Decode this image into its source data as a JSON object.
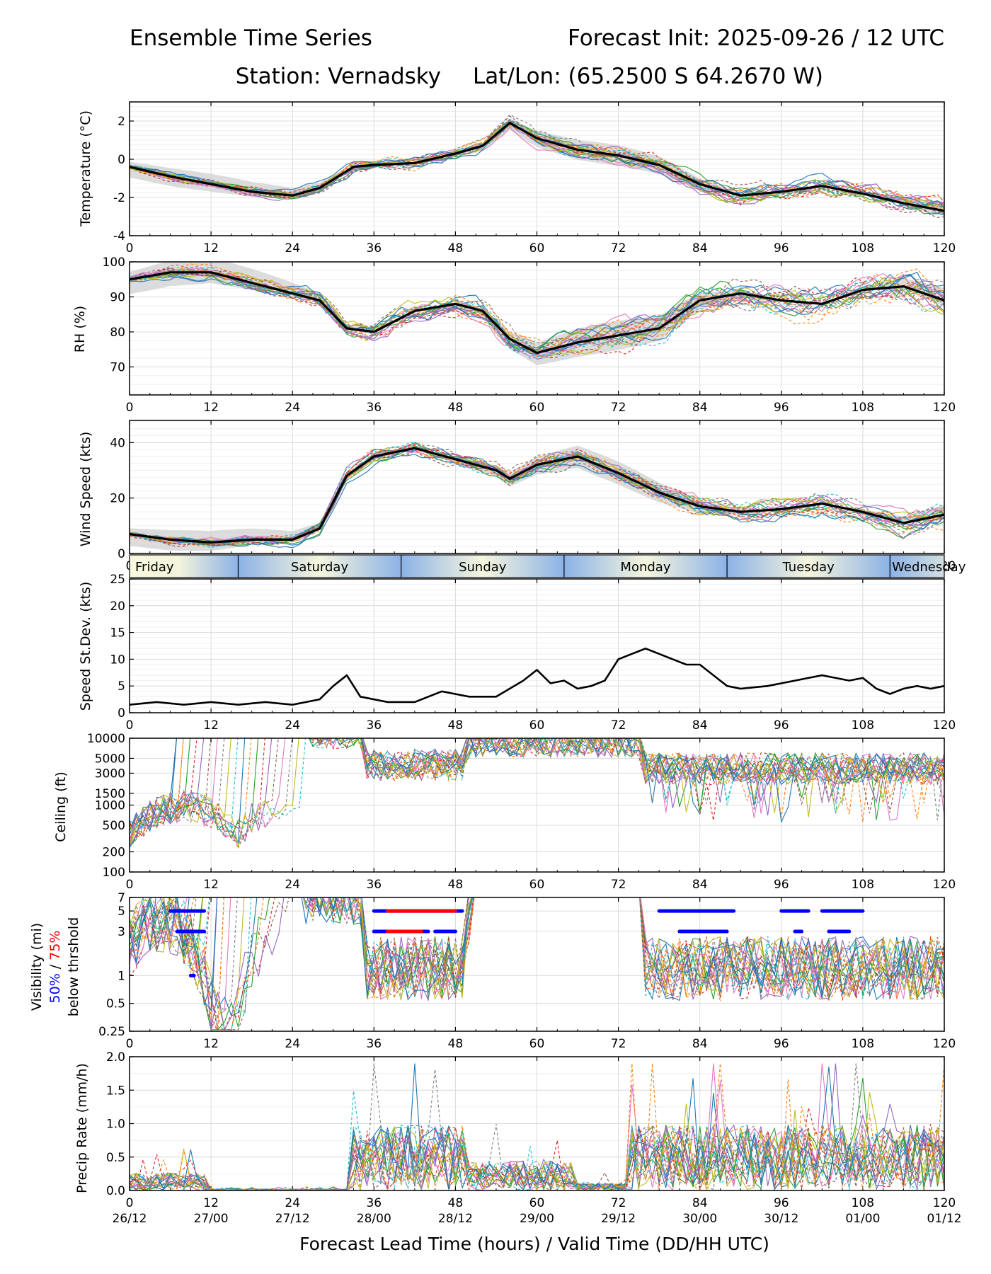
{
  "header": {
    "title_left": "Ensemble Time Series",
    "title_right": "Forecast Init: 2025-09-26 / 12 UTC",
    "station": "Station: Vernadsky",
    "latlon": "Lat/Lon: (65.2500 S 64.2670 W)"
  },
  "day_band": [
    "Friday",
    "Saturday",
    "Sunday",
    "Monday",
    "Tuesday",
    "Wednesday"
  ],
  "x_axis": {
    "title": "Forecast Lead Time (hours) / Valid Time (DD/HH UTC)",
    "lead_ticks": [
      "0",
      "12",
      "24",
      "36",
      "48",
      "60",
      "72",
      "84",
      "96",
      "108",
      "120"
    ],
    "valid_ticks": [
      "26/12",
      "27/00",
      "27/12",
      "28/00",
      "28/12",
      "29/00",
      "29/12",
      "30/00",
      "30/12",
      "01/00",
      "01/12"
    ]
  },
  "visibility_label": {
    "line1": "Visibility (mi)",
    "pct50": "50%",
    "sep": " / ",
    "pct75": "75%",
    "line3": "below thrshold"
  },
  "colors": {
    "mean": "#000000",
    "spread": "#d0d0d0",
    "vis50": "#0000ff",
    "vis75": "#ff0000",
    "members": [
      "#1f77b4",
      "#ff7f0e",
      "#2ca02c",
      "#d62728",
      "#9467bd",
      "#8c564b",
      "#e377c2",
      "#7f7f7f",
      "#bcbd22",
      "#17becf"
    ]
  },
  "chart_data": [
    {
      "type": "line",
      "name": "temperature",
      "ylabel": "Temperature (°C)",
      "ylim": [
        -4,
        3
      ],
      "yticks": [
        "-4",
        "-2",
        "0",
        "2"
      ],
      "mean": {
        "x": [
          0,
          6,
          12,
          18,
          24,
          28,
          33,
          36,
          42,
          48,
          52,
          56,
          60,
          66,
          72,
          78,
          84,
          90,
          96,
          102,
          108,
          114,
          120
        ],
        "y": [
          -0.4,
          -0.9,
          -1.3,
          -1.7,
          -1.9,
          -1.5,
          -0.4,
          -0.3,
          -0.2,
          0.3,
          0.7,
          1.9,
          1.1,
          0.5,
          0.2,
          -0.3,
          -1.3,
          -1.9,
          -1.7,
          -1.4,
          -1.8,
          -2.3,
          -2.7
        ]
      },
      "ensemble_spread": 0.45,
      "members": 22
    },
    {
      "type": "line",
      "name": "relative_humidity",
      "ylabel": "RH (%)",
      "ylim": [
        62,
        100
      ],
      "yticks": [
        "70",
        "80",
        "90",
        "100"
      ],
      "mean": {
        "x": [
          0,
          6,
          12,
          18,
          24,
          28,
          32,
          36,
          42,
          48,
          52,
          56,
          60,
          66,
          72,
          78,
          84,
          90,
          96,
          102,
          108,
          114,
          120
        ],
        "y": [
          95,
          97,
          97,
          94,
          91,
          89,
          81,
          80,
          86,
          88,
          86,
          78,
          74,
          77,
          79,
          81,
          89,
          91,
          89,
          88,
          92,
          93,
          89
        ]
      },
      "ensemble_spread": 3.5,
      "members": 22
    },
    {
      "type": "line",
      "name": "wind_speed",
      "ylabel": "Wind Speed (kts)",
      "ylim": [
        0,
        48
      ],
      "yticks": [
        "0",
        "20",
        "40"
      ],
      "mean": {
        "x": [
          0,
          6,
          12,
          18,
          24,
          28,
          32,
          36,
          42,
          48,
          54,
          56,
          60,
          66,
          72,
          78,
          84,
          90,
          96,
          102,
          108,
          114,
          120
        ],
        "y": [
          7,
          5,
          4,
          5,
          5,
          9,
          28,
          35,
          38,
          34,
          30,
          27,
          32,
          35,
          29,
          22,
          17,
          15,
          16,
          18,
          15,
          11,
          14
        ]
      },
      "ensemble_spread": 3.5,
      "members": 22
    },
    {
      "type": "line",
      "name": "speed_stdev",
      "ylabel": "Speed St.Dev. (kts)",
      "ylim": [
        0,
        25
      ],
      "yticks": [
        "0",
        "5",
        "10",
        "15",
        "20",
        "25"
      ],
      "x": [
        0,
        4,
        8,
        12,
        16,
        20,
        24,
        28,
        30,
        32,
        34,
        38,
        42,
        46,
        50,
        54,
        58,
        60,
        62,
        64,
        66,
        68,
        70,
        72,
        74,
        76,
        78,
        80,
        82,
        84,
        86,
        88,
        90,
        94,
        98,
        102,
        106,
        108,
        110,
        112,
        114,
        116,
        118,
        120
      ],
      "y": [
        1.5,
        2,
        1.5,
        2,
        1.5,
        2,
        1.5,
        2.5,
        5,
        7,
        3,
        2,
        2,
        4,
        3,
        3,
        6,
        8,
        5.5,
        6,
        4.5,
        5,
        6,
        10,
        11,
        12,
        11,
        10,
        9,
        9,
        7,
        5,
        4.5,
        5,
        6,
        7,
        6,
        6.5,
        4.5,
        3.5,
        4.5,
        5,
        4.5,
        5
      ]
    },
    {
      "type": "line",
      "name": "ceiling",
      "ylabel": "Ceiling (ft)",
      "scale": "log",
      "ylim": [
        100,
        10000
      ],
      "yticks": [
        "100",
        "200",
        "500",
        "1000",
        "1500",
        "3000",
        "5000",
        "10000"
      ],
      "members": 22
    },
    {
      "type": "line",
      "name": "visibility",
      "ylabel": "Visibility (mi)",
      "scale": "log",
      "ylim": [
        0.25,
        7
      ],
      "yticks": [
        "0.25",
        "0.5",
        "1",
        "3",
        "5",
        "7"
      ],
      "threshold_segments_50pct": [
        {
          "y": 5,
          "x": [
            [
              6,
              11
            ],
            [
              36,
              49
            ],
            [
              78,
              89
            ],
            [
              96,
              100
            ],
            [
              102,
              108
            ]
          ]
        },
        {
          "y": 3,
          "x": [
            [
              7,
              11
            ],
            [
              36,
              44
            ],
            [
              45,
              48
            ],
            [
              81,
              88
            ],
            [
              98,
              99
            ],
            [
              103,
              106
            ]
          ]
        },
        {
          "y": 1,
          "x": [
            [
              9,
              9.5
            ]
          ]
        }
      ],
      "threshold_segments_75pct": [
        {
          "y": 5,
          "x": [
            [
              38,
              48
            ]
          ]
        },
        {
          "y": 3,
          "x": [
            [
              38,
              43
            ]
          ]
        }
      ],
      "members": 22
    },
    {
      "type": "line",
      "name": "precip_rate",
      "ylabel": "Precip Rate (mm/h)",
      "ylim": [
        0,
        2
      ],
      "yticks": [
        "0.0",
        "0.5",
        "1.0",
        "1.5",
        "2.0"
      ],
      "members": 22
    }
  ]
}
